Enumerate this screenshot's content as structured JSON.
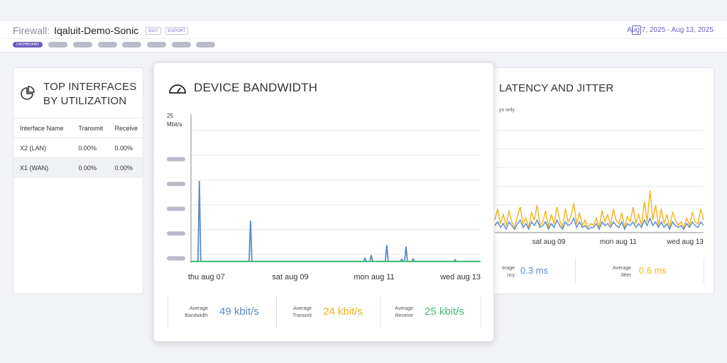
{
  "header": {
    "label": "Firewall:",
    "name": "Iqaluit-Demo-Sonic",
    "edit": "EDIT",
    "export": "EXPORT",
    "date_range": "Aug 7, 2025 - Aug 13, 2025",
    "nav_active": "DASHBOARD"
  },
  "top_interfaces": {
    "title_line1": "TOP INTERFACES",
    "title_line2": "BY UTILIZATION",
    "columns": [
      "Interface Name",
      "Transmit",
      "Receive"
    ],
    "rows": [
      [
        "X2 (LAN)",
        "0.00%",
        "0.00%"
      ],
      [
        "X1 (WAN)",
        "0.00%",
        "0.00%"
      ]
    ]
  },
  "bandwidth": {
    "title": "DEVICE BANDWIDTH",
    "y_top_value": "25",
    "y_unit": "Mbit/s",
    "stats": [
      {
        "label1": "Average",
        "label2": "Bandwidth",
        "value": "49 kbit/s",
        "color": "#5b8ac8"
      },
      {
        "label1": "Average",
        "label2": "Transmit",
        "value": "24 kbit/s",
        "color": "#f5b21b"
      },
      {
        "label1": "Average",
        "label2": "Receive",
        "value": "25 kbit/s",
        "color": "#3fbf73"
      }
    ]
  },
  "latency": {
    "title_visible": "NCY AND JITTER",
    "subtitle_visible": "ys only",
    "stats": [
      {
        "label1": "erage",
        "label2": "ncy",
        "value": "0.3 ms",
        "color": "#5b8ac8"
      },
      {
        "label1": "Average",
        "label2": "Jitter",
        "value": "0.6 ms",
        "color": "#f5b21b"
      }
    ]
  },
  "chart_data": [
    {
      "type": "line",
      "title": "DEVICE BANDWIDTH",
      "ylabel": "Mbit/s",
      "ylim": [
        0,
        25
      ],
      "x_unit": "days since Aug 7",
      "xlim": [
        -0.37,
        6.54
      ],
      "x_ticks": [
        {
          "x": 0,
          "label": "thu aug 07"
        },
        {
          "x": 2,
          "label": "sat aug 09"
        },
        {
          "x": 4,
          "label": "mon aug 11"
        },
        {
          "x": 6,
          "label": "wed aug 13"
        }
      ],
      "series": [
        {
          "name": "Bandwidth",
          "color": "#5b8ac8",
          "spikes": [
            [
              -0.17,
              15.5
            ],
            [
              1.05,
              8
            ],
            [
              3.78,
              0.9
            ],
            [
              3.93,
              1.5
            ],
            [
              4.3,
              3.4
            ],
            [
              4.66,
              0.7
            ],
            [
              4.76,
              3.1
            ],
            [
              4.93,
              0.8
            ],
            [
              5.93,
              0.6
            ]
          ]
        },
        {
          "name": "Receive",
          "color": "#3fbf73",
          "baseline": 0.3
        }
      ]
    },
    {
      "type": "line",
      "title": "LATENCY AND JITTER",
      "xlim": [
        0.45,
        6.45
      ],
      "ylim": [
        0,
        5.5
      ],
      "x_ticks": [
        {
          "x": 2,
          "label": "sat aug 09"
        },
        {
          "x": 4,
          "label": "mon aug 11"
        },
        {
          "x": 6,
          "label": "wed aug 13"
        }
      ],
      "series": [
        {
          "name": "Jitter",
          "color": "#f5b21b",
          "values": [
            0.6,
            1.2,
            0.4,
            0.9,
            0.3,
            1.1,
            0.5,
            0.2,
            0.8,
            1.3,
            0.4,
            0.7,
            0.2,
            1.0,
            0.6,
            1.4,
            0.3,
            0.5,
            1.1,
            0.2,
            0.9,
            0.4,
            1.3,
            0.6,
            0.2,
            1.2,
            0.5,
            0.8,
            1.5,
            0.4,
            1.0,
            0.3,
            0.6,
            0.2,
            0.4,
            0.3,
            0.7,
            0.2,
            1.1,
            0.5,
            0.9,
            0.3,
            1.2,
            0.6,
            0.4,
            1.0,
            0.2,
            0.8,
            0.5,
            1.3,
            0.4,
            0.9,
            0.3,
            1.6,
            0.5,
            2.2,
            0.6,
            1.4,
            0.3,
            1.2,
            0.4,
            0.9,
            0.2,
            1.0,
            0.6,
            0.3,
            0.5,
            0.2,
            0.7,
            0.3,
            1.0,
            0.5,
            0.4,
            1.2,
            0.6
          ]
        },
        {
          "name": "Latency",
          "color": "#5b8ac8",
          "values": [
            0.3,
            0.5,
            0.2,
            0.4,
            0.1,
            0.5,
            0.3,
            0.1,
            0.4,
            0.6,
            0.2,
            0.4,
            0.1,
            0.5,
            0.3,
            0.6,
            0.2,
            0.3,
            0.5,
            0.1,
            0.4,
            0.2,
            0.6,
            0.3,
            0.1,
            0.5,
            0.3,
            0.4,
            0.7,
            0.2,
            0.5,
            0.2,
            0.3,
            0.1,
            0.2,
            0.2,
            0.4,
            0.1,
            0.5,
            0.3,
            0.4,
            0.2,
            0.5,
            0.3,
            0.2,
            0.5,
            0.1,
            0.4,
            0.3,
            0.5,
            0.2,
            0.4,
            0.2,
            0.6,
            0.3,
            0.7,
            0.3,
            0.5,
            0.2,
            0.5,
            0.2,
            0.4,
            0.1,
            0.5,
            0.3,
            0.2,
            0.3,
            0.1,
            0.4,
            0.2,
            0.5,
            0.3,
            0.2,
            0.5,
            0.3
          ]
        }
      ]
    }
  ]
}
